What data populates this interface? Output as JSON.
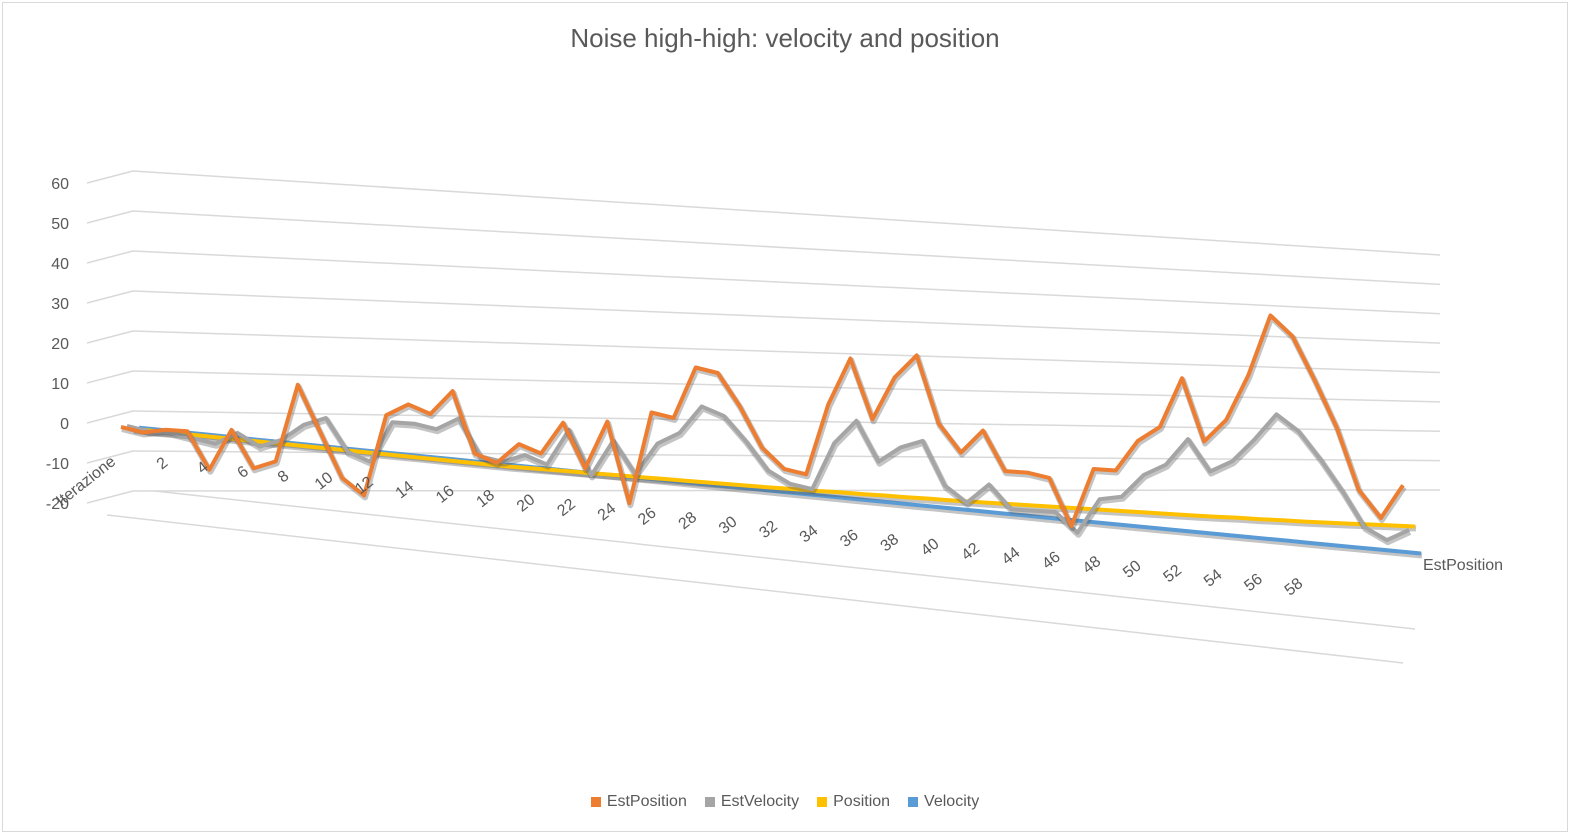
{
  "chart_data": {
    "type": "line",
    "title": "Noise high-high: velocity and position",
    "xlabel": "Iterazione",
    "ylabel": "",
    "depth_axis_label": "EstPosition",
    "ylim": [
      -20,
      60
    ],
    "yticks": [
      -20,
      -10,
      0,
      10,
      20,
      30,
      40,
      50,
      60
    ],
    "x": [
      1,
      2,
      3,
      4,
      5,
      6,
      7,
      8,
      9,
      10,
      11,
      12,
      13,
      14,
      15,
      16,
      17,
      18,
      19,
      20,
      21,
      22,
      23,
      24,
      25,
      26,
      27,
      28,
      29,
      30,
      31,
      32,
      33,
      34,
      35,
      36,
      37,
      38,
      39,
      40,
      41,
      42,
      43,
      44,
      45,
      46,
      47,
      48,
      49,
      50,
      51,
      52,
      53,
      54,
      55,
      56,
      57,
      58,
      59
    ],
    "x_tick_labels": [
      "2",
      "4",
      "6",
      "8",
      "10",
      "12",
      "14",
      "16",
      "18",
      "20",
      "22",
      "24",
      "26",
      "28",
      "30",
      "32",
      "34",
      "36",
      "38",
      "40",
      "42",
      "44",
      "46",
      "48",
      "50",
      "52",
      "54",
      "56",
      "58"
    ],
    "grid": true,
    "legend_position": "bottom",
    "series": [
      {
        "name": "EstPosition",
        "color": "#ED7D31",
        "values": [
          0,
          -1,
          0,
          0,
          -9,
          1,
          -8,
          -6,
          13,
          2,
          -9,
          -13,
          7,
          10,
          8,
          14,
          -1,
          -3,
          2,
          0,
          8,
          -3,
          9,
          -11,
          12,
          11,
          24,
          23,
          15,
          5,
          0,
          -1,
          17,
          29,
          14,
          25,
          31,
          14,
          7,
          13,
          3,
          3,
          2,
          -10,
          5,
          5,
          13,
          17,
          30,
          14,
          20,
          32,
          48,
          43,
          32,
          20,
          4,
          -3,
          6
        ]
      },
      {
        "name": "EstVelocity",
        "color": "#A5A5A5",
        "values": [
          1,
          0,
          0,
          -1,
          -2,
          1,
          -2,
          0,
          4,
          6,
          -2,
          -4,
          6,
          6,
          5,
          8,
          -1,
          -2,
          0,
          -2,
          7,
          -4,
          5,
          -3,
          5,
          8,
          15,
          13,
          7,
          0,
          -3,
          -4,
          8,
          14,
          4,
          8,
          10,
          -1,
          -5,
          0,
          -6,
          -6,
          -6,
          -11,
          -2,
          -1,
          5,
          8,
          15,
          7,
          10,
          16,
          23,
          19,
          12,
          4,
          -5,
          -8,
          -5
        ]
      },
      {
        "name": "Position",
        "color": "#FFC000",
        "values": [
          1.0,
          0.8,
          0.6,
          0.4,
          0.2,
          0.0,
          -0.2,
          -0.4,
          -0.6,
          -0.8,
          -1.0,
          -1.2,
          -1.4,
          -1.6,
          -1.8,
          -2.0,
          -2.2,
          -2.4,
          -2.5,
          -2.6,
          -2.7,
          -2.8,
          -2.9,
          -3.0,
          -3.1,
          -3.2,
          -3.3,
          -3.4,
          -3.5,
          -3.6,
          -3.6,
          -3.7,
          -3.7,
          -3.8,
          -3.8,
          -3.9,
          -3.9,
          -4.0,
          -4.0,
          -4.0,
          -4.0,
          -4.0,
          -4.0,
          -4.0,
          -4.0,
          -4.0,
          -4.0,
          -4.0,
          -4.0,
          -4.0,
          -3.9,
          -3.9,
          -3.8,
          -3.8,
          -3.7,
          -3.6,
          -3.5,
          -3.4,
          -3.3
        ]
      },
      {
        "name": "Velocity",
        "color": "#5B9BD5",
        "values": [
          2.0,
          1.8,
          1.6,
          1.4,
          1.2,
          1.0,
          0.8,
          0.6,
          0.4,
          0.2,
          0.0,
          -0.2,
          -0.4,
          -0.6,
          -0.8,
          -1.0,
          -1.2,
          -1.4,
          -1.6,
          -1.8,
          -2.0,
          -2.2,
          -2.4,
          -2.6,
          -2.8,
          -3.0,
          -3.2,
          -3.4,
          -3.6,
          -3.8,
          -4.0,
          -4.2,
          -4.4,
          -4.6,
          -4.8,
          -5.0,
          -5.2,
          -5.4,
          -5.6,
          -5.8,
          -6.0,
          -6.2,
          -6.4,
          -6.6,
          -6.8,
          -7.0,
          -7.2,
          -7.4,
          -7.6,
          -7.8,
          -8.0,
          -8.2,
          -8.4,
          -8.6,
          -8.8,
          -9.0,
          -9.2,
          -9.4,
          -9.6
        ]
      }
    ]
  }
}
